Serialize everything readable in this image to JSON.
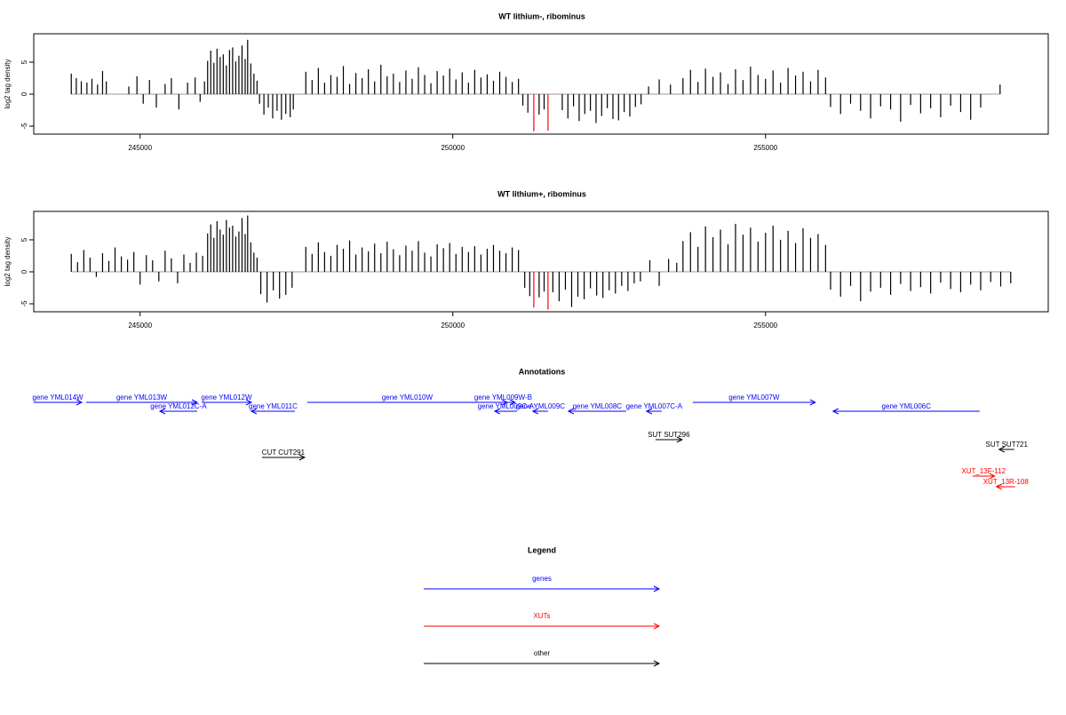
{
  "chart_data": [
    {
      "type": "bar",
      "title": "WT lithium-, ribominus",
      "ylabel": "log2 tag density",
      "xlim": [
        243300,
        259520
      ],
      "xticks": [
        245000,
        250000,
        255000
      ],
      "ylim": [
        -6.25,
        9.44
      ],
      "yticks": [
        -5,
        0,
        5
      ],
      "series": [
        {
          "color": "#000000",
          "x": [
            243900,
            243980,
            244060,
            244150,
            244230,
            244320,
            244400,
            244460,
            244820,
            244950,
            245050,
            245150,
            245260,
            245400,
            245500,
            245620,
            245760,
            245880,
            245960,
            246030,
            246080,
            246130,
            246180,
            246230,
            246280,
            246330,
            246380,
            246430,
            246480,
            246530,
            246580,
            246630,
            246680,
            246720,
            246770,
            246820,
            246870,
            246910,
            246980,
            247050,
            247120,
            247190,
            247260,
            247330,
            247400,
            247450,
            247650,
            247750,
            247850,
            247950,
            248050,
            248150,
            248250,
            248350,
            248450,
            248550,
            248650,
            248750,
            248850,
            248950,
            249050,
            249150,
            249250,
            249350,
            249450,
            249550,
            249650,
            249750,
            249850,
            249950,
            250050,
            250150,
            250250,
            250350,
            250450,
            250550,
            250650,
            250750,
            250850,
            250950,
            251050,
            251120,
            251200,
            251380,
            251460,
            251750,
            251840,
            251930,
            252020,
            252110,
            252200,
            252290,
            252380,
            252470,
            252560,
            252650,
            252740,
            252830,
            252920,
            253010,
            253130,
            253300,
            253480,
            253680,
            253800,
            253920,
            254040,
            254160,
            254280,
            254400,
            254520,
            254640,
            254760,
            254880,
            255000,
            255120,
            255240,
            255360,
            255480,
            255600,
            255720,
            255840,
            255960,
            256040,
            256200,
            256360,
            256520,
            256680,
            256840,
            257000,
            257160,
            257320,
            257480,
            257640,
            257800,
            257960,
            258120,
            258280,
            258440,
            258750
          ],
          "values": [
            3.2,
            2.5,
            2.0,
            1.8,
            2.4,
            1.5,
            3.6,
            2.0,
            1.2,
            2.8,
            -1.5,
            2.2,
            -2.1,
            1.6,
            2.5,
            -2.4,
            1.8,
            2.6,
            -1.2,
            2.0,
            5.2,
            6.8,
            4.9,
            7.1,
            5.8,
            6.2,
            4.5,
            6.9,
            7.3,
            5.1,
            6.0,
            7.6,
            5.5,
            8.5,
            4.8,
            3.2,
            2.1,
            -1.5,
            -3.2,
            -2.1,
            -3.8,
            -2.6,
            -4.0,
            -3.1,
            -3.6,
            -2.4,
            3.5,
            2.2,
            4.1,
            1.8,
            3.0,
            2.7,
            4.4,
            1.6,
            3.3,
            2.5,
            3.9,
            2.0,
            4.6,
            2.8,
            3.2,
            1.9,
            3.7,
            2.4,
            4.2,
            3.0,
            1.7,
            3.6,
            2.9,
            4.0,
            2.3,
            3.4,
            1.8,
            3.8,
            2.6,
            3.1,
            2.1,
            3.5,
            2.7,
            1.9,
            2.4,
            -1.8,
            -2.9,
            -3.2,
            -2.4,
            -2.5,
            -3.8,
            -1.9,
            -4.2,
            -3.1,
            -2.6,
            -4.5,
            -3.4,
            -2.2,
            -3.9,
            -4.1,
            -2.8,
            -3.5,
            -2.0,
            -1.6,
            1.2,
            2.3,
            1.5,
            2.5,
            3.8,
            1.9,
            4.0,
            2.7,
            3.4,
            1.6,
            3.9,
            2.2,
            4.3,
            3.0,
            2.4,
            3.7,
            1.8,
            4.1,
            2.9,
            3.5,
            2.0,
            3.8,
            2.6,
            -2.0,
            -3.1,
            -1.5,
            -2.6,
            -3.8,
            -1.9,
            -2.4,
            -4.3,
            -1.7,
            -3.0,
            -2.2,
            -3.6,
            -1.8,
            -2.8,
            -4.0,
            -2.1,
            1.5
          ]
        },
        {
          "color": "#ff0000",
          "x": [
            251295,
            251522
          ],
          "values": [
            -5.8,
            -5.7
          ]
        }
      ]
    },
    {
      "type": "bar",
      "title": "WT lithium+, ribominus",
      "ylabel": "log2 tag density",
      "xlim": [
        243300,
        259520
      ],
      "xticks": [
        245000,
        250000,
        255000
      ],
      "ylim": [
        -6.25,
        9.44
      ],
      "yticks": [
        -5,
        0,
        5
      ],
      "series": [
        {
          "color": "#000000",
          "x": [
            243900,
            244000,
            244100,
            244200,
            244300,
            244400,
            244500,
            244600,
            244700,
            244800,
            244900,
            245000,
            245100,
            245200,
            245300,
            245400,
            245500,
            245600,
            245700,
            245800,
            245900,
            246000,
            246080,
            246130,
            246180,
            246230,
            246280,
            246330,
            246380,
            246430,
            246480,
            246530,
            246580,
            246630,
            246680,
            246720,
            246770,
            246820,
            246870,
            246930,
            247030,
            247130,
            247230,
            247330,
            247430,
            247650,
            247750,
            247850,
            247950,
            248050,
            248150,
            248250,
            248350,
            248450,
            248550,
            248650,
            248750,
            248850,
            248950,
            249050,
            249150,
            249250,
            249350,
            249450,
            249550,
            249650,
            249750,
            249850,
            249950,
            250050,
            250150,
            250250,
            250350,
            250450,
            250550,
            250650,
            250750,
            250850,
            250950,
            251050,
            251150,
            251230,
            251380,
            251460,
            251600,
            251700,
            251800,
            251900,
            252000,
            252100,
            252200,
            252300,
            252400,
            252500,
            252600,
            252700,
            252800,
            252900,
            253000,
            253150,
            253300,
            253450,
            253580,
            253680,
            253800,
            253920,
            254040,
            254160,
            254280,
            254400,
            254520,
            254640,
            254760,
            254880,
            255000,
            255120,
            255240,
            255360,
            255480,
            255600,
            255720,
            255840,
            255960,
            256040,
            256200,
            256360,
            256520,
            256680,
            256840,
            257000,
            257160,
            257320,
            257480,
            257640,
            257800,
            257960,
            258120,
            258280,
            258440,
            258600,
            258760,
            258920
          ],
          "values": [
            2.8,
            1.5,
            3.4,
            2.2,
            -0.8,
            2.9,
            1.7,
            3.8,
            2.4,
            1.9,
            3.1,
            -2.0,
            2.6,
            1.8,
            -1.5,
            3.3,
            2.1,
            -1.8,
            2.7,
            1.4,
            3.0,
            2.5,
            6.0,
            7.4,
            5.3,
            7.9,
            6.6,
            5.8,
            8.1,
            6.9,
            7.2,
            5.5,
            6.3,
            8.4,
            5.9,
            8.8,
            4.6,
            3.0,
            2.2,
            -3.5,
            -4.8,
            -2.9,
            -4.2,
            -3.6,
            -2.5,
            3.9,
            2.8,
            4.6,
            3.1,
            2.5,
            4.2,
            3.6,
            4.9,
            2.7,
            3.8,
            3.2,
            4.4,
            2.9,
            4.7,
            3.5,
            2.6,
            4.1,
            3.3,
            4.8,
            3.0,
            2.4,
            4.3,
            3.7,
            4.5,
            2.8,
            3.9,
            3.1,
            4.0,
            2.7,
            3.6,
            4.2,
            3.3,
            2.9,
            3.8,
            3.4,
            -2.5,
            -3.8,
            -4.0,
            -3.1,
            -3.2,
            -4.6,
            -2.8,
            -5.5,
            -3.9,
            -4.3,
            -2.6,
            -3.7,
            -4.1,
            -2.9,
            -3.4,
            -2.2,
            -3.0,
            -1.8,
            -1.5,
            1.8,
            -2.2,
            2.0,
            1.4,
            4.8,
            6.2,
            3.9,
            7.1,
            5.4,
            6.6,
            4.3,
            7.5,
            5.8,
            6.9,
            4.7,
            6.1,
            7.2,
            5.0,
            6.4,
            4.5,
            6.8,
            5.3,
            5.9,
            4.2,
            -2.8,
            -3.9,
            -2.2,
            -4.6,
            -3.1,
            -2.5,
            -3.6,
            -1.9,
            -3.0,
            -2.4,
            -3.4,
            -1.7,
            -2.7,
            -3.2,
            -2.0,
            -2.9,
            -1.6,
            -2.3,
            -1.8
          ]
        },
        {
          "color": "#ff0000",
          "x": [
            251295,
            251522
          ],
          "values": [
            -5.6,
            -5.9
          ]
        }
      ]
    }
  ],
  "annotations": {
    "title": "Annotations",
    "xlim": [
      243300,
      259520
    ],
    "features": [
      {
        "label": "gene YML014W",
        "start": 243300,
        "end": 244067,
        "strand": "+",
        "color": "#0000ff"
      },
      {
        "label": "gene YML013W",
        "start": 244138,
        "end": 245913,
        "strand": "+",
        "color": "#0000ff"
      },
      {
        "label": "gene YML012C-A",
        "start": 245316,
        "end": 245913,
        "strand": "-",
        "color": "#0000ff"
      },
      {
        "label": "gene YML012W",
        "start": 245984,
        "end": 246779,
        "strand": "+",
        "color": "#0000ff"
      },
      {
        "label": "gene YML011C",
        "start": 246779,
        "end": 247475,
        "strand": "-",
        "color": "#0000ff"
      },
      {
        "label": "gene YML010W",
        "start": 247674,
        "end": 250869,
        "strand": "+",
        "color": "#0000ff"
      },
      {
        "label": "gene YML009W-B",
        "start": 250613,
        "end": 250996,
        "strand": "+",
        "color": "#0000ff"
      },
      {
        "label": "gene YML009C-A",
        "start": 250670,
        "end": 251025,
        "strand": "-",
        "color": "#0000ff"
      },
      {
        "label": "gene YML009C",
        "start": 251280,
        "end": 251522,
        "strand": "-",
        "color": "#0000ff"
      },
      {
        "label": "gene YML008C",
        "start": 251848,
        "end": 252771,
        "strand": "-",
        "color": "#0000ff"
      },
      {
        "label": "gene YML007C-A",
        "start": 253098,
        "end": 253339,
        "strand": "-",
        "color": "#0000ff"
      },
      {
        "label": "gene YML007W",
        "start": 253836,
        "end": 255796,
        "strand": "+",
        "color": "#0000ff"
      },
      {
        "label": "gene YML006C",
        "start": 256080,
        "end": 258423,
        "strand": "-",
        "color": "#0000ff"
      },
      {
        "label": "SUT SUT296",
        "start": 253240,
        "end": 253666,
        "strand": "+",
        "color": "#000000"
      },
      {
        "label": "SUT SUT721",
        "start": 258735,
        "end": 258977,
        "strand": "-",
        "color": "#000000"
      },
      {
        "label": "CUT CUT291",
        "start": 246949,
        "end": 247631,
        "strand": "+",
        "color": "#000000"
      },
      {
        "label": "XUT_13F-112",
        "start": 258309,
        "end": 258664,
        "strand": "+",
        "color": "#ff0000"
      },
      {
        "label": "XUT_13R-108",
        "start": 258693,
        "end": 258991,
        "strand": "-",
        "color": "#ff0000"
      }
    ]
  },
  "legend": {
    "title": "Legend",
    "items": [
      {
        "label": "genes",
        "color": "#0000ff"
      },
      {
        "label": "XUTs",
        "color": "#ff0000"
      },
      {
        "label": "other",
        "color": "#000000"
      }
    ]
  }
}
